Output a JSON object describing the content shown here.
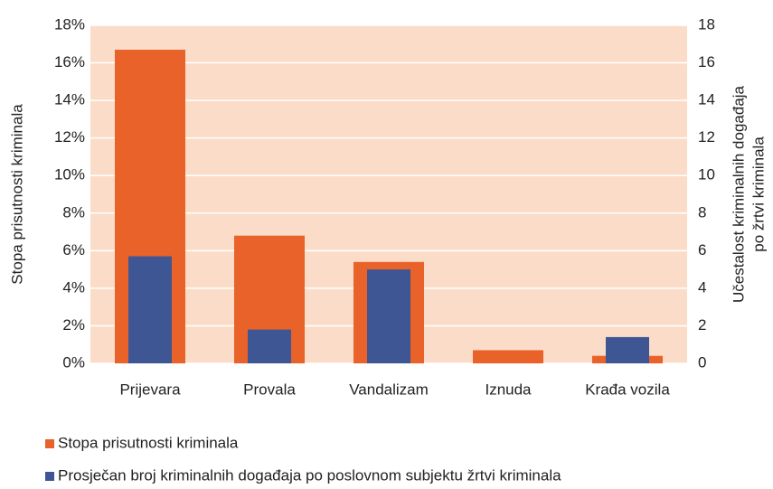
{
  "chart_data": {
    "type": "bar",
    "categories": [
      "Prijevara",
      "Provala",
      "Vandalizam",
      "Iznuda",
      "Krađa vozila"
    ],
    "series": [
      {
        "name": "Stopa prisutnosti kriminala",
        "color": "#e8622a",
        "values": [
          16.7,
          6.8,
          5.4,
          0.7,
          0.4
        ]
      },
      {
        "name": "Prosječan broj kriminalnih događaja po poslovnom subjektu žrtvi kriminala",
        "color": "#3f5694",
        "axis": "y2",
        "values": [
          5.7,
          1.8,
          5.0,
          0,
          1.4
        ]
      }
    ],
    "ylabel": "Stopa prisutnosti kriminala",
    "y2label": [
      "Učestalost kriminalnih događaja",
      "po žrtvi kriminala"
    ],
    "ylim": [
      0,
      18
    ],
    "yticks": [
      {
        "value": 0,
        "label": "0%"
      },
      {
        "value": 2,
        "label": "2%"
      },
      {
        "value": 4,
        "label": "4%"
      },
      {
        "value": 6,
        "label": "6%"
      },
      {
        "value": 8,
        "label": "8%"
      },
      {
        "value": 10,
        "label": "10%"
      },
      {
        "value": 12,
        "label": "12%"
      },
      {
        "value": 14,
        "label": "14%"
      },
      {
        "value": 16,
        "label": "16%"
      },
      {
        "value": 18,
        "label": "18%"
      }
    ],
    "y2lim": [
      0,
      18
    ],
    "y2ticks": [
      0,
      2,
      4,
      6,
      8,
      10,
      12,
      14,
      16,
      18
    ],
    "grid": true,
    "legend": "bottom"
  }
}
